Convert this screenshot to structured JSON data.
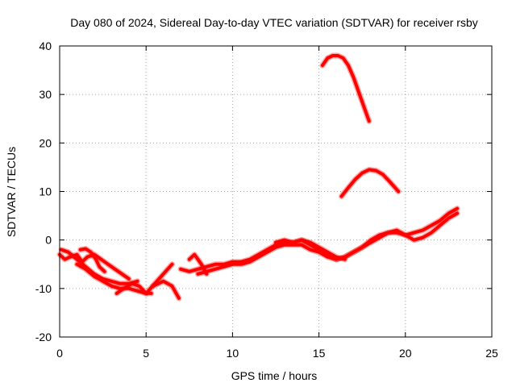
{
  "chart_data": {
    "type": "line",
    "title": "Day 080 of 2024, Sidereal Day-to-day VTEC variation (SDTVAR) for receiver rsby",
    "xlabel": "GPS time / hours",
    "ylabel": "SDTVAR / TECUs",
    "xlim": [
      0,
      25
    ],
    "ylim": [
      -20,
      40
    ],
    "xticks": [
      0,
      5,
      10,
      15,
      20,
      25
    ],
    "yticks": [
      -20,
      -10,
      0,
      10,
      20,
      30,
      40
    ],
    "grid": true,
    "color": "#ff0000",
    "series": [
      {
        "name": "a",
        "x": [
          0.0,
          0.3,
          0.6,
          1.0,
          1.3,
          1.6,
          2.0,
          2.4,
          2.8,
          3.2,
          3.6,
          4.0
        ],
        "y": [
          -3,
          -4,
          -3.5,
          -3,
          -4.5,
          -3.5,
          -3,
          -4,
          -5,
          -6,
          -7,
          -8
        ]
      },
      {
        "name": "b",
        "x": [
          0.1,
          0.5,
          1.0,
          1.5,
          2.0,
          2.5,
          3.0,
          3.5,
          4.0,
          4.5
        ],
        "y": [
          -2,
          -2.5,
          -4,
          -5.5,
          -7,
          -8,
          -8.5,
          -9,
          -9,
          -8.5
        ]
      },
      {
        "name": "c",
        "x": [
          1.2,
          1.5,
          1.8,
          2.1,
          2.3,
          2.6
        ],
        "y": [
          -2,
          -1.8,
          -2.5,
          -4,
          -5.5,
          -6.5
        ]
      },
      {
        "name": "d",
        "x": [
          1.0,
          1.5,
          2.0,
          2.5,
          3.0,
          3.5,
          4.0,
          4.5,
          5.0,
          5.3
        ],
        "y": [
          -5,
          -6,
          -7.5,
          -8.5,
          -9.5,
          -10,
          -10,
          -10.5,
          -11,
          -11
        ]
      },
      {
        "name": "e",
        "x": [
          3.3,
          3.7,
          4.2,
          4.6,
          5.0,
          5.5,
          6.0,
          6.5
        ],
        "y": [
          -11,
          -10,
          -9,
          -9.5,
          -11,
          -9,
          -7,
          -5
        ]
      },
      {
        "name": "f",
        "x": [
          5.4,
          6.0,
          6.5,
          6.9
        ],
        "y": [
          -9.5,
          -8.5,
          -9.5,
          -12
        ]
      },
      {
        "name": "g",
        "x": [
          7.5,
          7.8,
          8.0,
          8.2,
          8.5
        ],
        "y": [
          -4,
          -3,
          -4,
          -5,
          -7
        ]
      },
      {
        "name": "h",
        "x": [
          7.0,
          7.5,
          8.0,
          8.5,
          9.0,
          9.5,
          10.0,
          10.5,
          11.0,
          11.5,
          12.0,
          12.5,
          13.0,
          13.5,
          14.0,
          14.5,
          15.0,
          15.5,
          16.0,
          16.5,
          17.0,
          17.5,
          18.0,
          18.5,
          19.0,
          19.5,
          20.0,
          20.5,
          21.0,
          21.5,
          22.0,
          22.5,
          23.0
        ],
        "y": [
          -6,
          -6.5,
          -6,
          -5.5,
          -5,
          -5,
          -4.5,
          -4.5,
          -4,
          -3,
          -2,
          -1,
          -0.5,
          -0.5,
          0,
          -1,
          -2,
          -3,
          -4,
          -3.5,
          -2.5,
          -1.5,
          -0.5,
          0.5,
          1.5,
          1.5,
          1,
          1.5,
          2,
          3,
          4,
          5.5,
          6.5
        ]
      },
      {
        "name": "i",
        "x": [
          8.0,
          8.5,
          9.0,
          9.5,
          10.0,
          10.5,
          11.0,
          11.5,
          12.0,
          12.5,
          13.0,
          13.5,
          14.0,
          14.5,
          15.0,
          15.5,
          16.0,
          16.5,
          17.0,
          17.5,
          18.0,
          18.5,
          19.0,
          19.5,
          20.0,
          20.5,
          21.0,
          21.5,
          22.0,
          22.5,
          23.0
        ],
        "y": [
          -7,
          -6.5,
          -6,
          -5.5,
          -5,
          -5,
          -4.5,
          -3.5,
          -2.5,
          -1.5,
          -1,
          -1,
          -1,
          -2,
          -2.5,
          -3.5,
          -4,
          -3.5,
          -2.5,
          -1.5,
          0,
          1,
          1.5,
          2,
          1,
          0,
          0.5,
          1.5,
          3,
          4.5,
          5.5
        ]
      },
      {
        "name": "j",
        "x": [
          12.5,
          13.0,
          13.5,
          14.0,
          14.5,
          15.0,
          15.5,
          16.0,
          16.5
        ],
        "y": [
          -0.5,
          0,
          -0.5,
          0,
          -0.5,
          -1.5,
          -2.5,
          -3.5,
          -4
        ]
      },
      {
        "name": "k",
        "x": [
          15.2,
          15.5,
          15.8,
          16.1,
          16.4,
          16.7,
          17.0,
          17.3,
          17.6,
          17.9
        ],
        "y": [
          36,
          37.5,
          38,
          38,
          37.5,
          36,
          33.5,
          30.5,
          27.5,
          24.5
        ]
      },
      {
        "name": "l",
        "x": [
          16.3,
          16.7,
          17.1,
          17.5,
          17.9,
          18.3,
          18.7,
          19.1,
          19.6
        ],
        "y": [
          9,
          10.8,
          12.5,
          13.8,
          14.5,
          14.3,
          13.5,
          12,
          10
        ]
      }
    ]
  }
}
